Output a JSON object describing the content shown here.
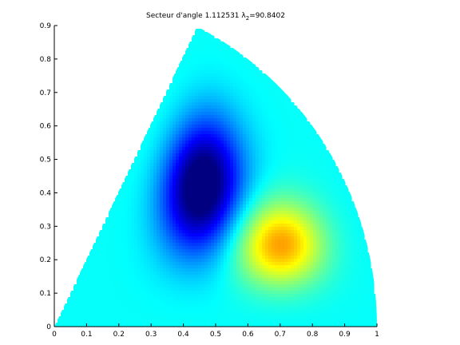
{
  "chart_data": {
    "type": "heatmap",
    "title": {
      "prefix": "Secteur d'angle 1.112531  ",
      "lambda_symbol": "λ",
      "subscript": "2",
      "suffix": "=90.8402"
    },
    "xlabel": "",
    "ylabel": "",
    "xlim": [
      0,
      1
    ],
    "ylim": [
      0,
      0.9
    ],
    "x_ticks": [
      "0",
      "0.1",
      "0.2",
      "0.3",
      "0.4",
      "0.5",
      "0.6",
      "0.7",
      "0.8",
      "0.9",
      "1"
    ],
    "y_ticks": [
      "0",
      "0.1",
      "0.2",
      "0.3",
      "0.4",
      "0.5",
      "0.6",
      "0.7",
      "0.8",
      "0.9"
    ],
    "grid": false,
    "colormap": "jet",
    "sector": {
      "angle_rad": 1.112531,
      "radius": 1,
      "apex": [
        0,
        0
      ]
    },
    "extrema": {
      "min_center": [
        0.45,
        0.5
      ],
      "max_center": [
        0.74,
        0.23
      ]
    }
  }
}
